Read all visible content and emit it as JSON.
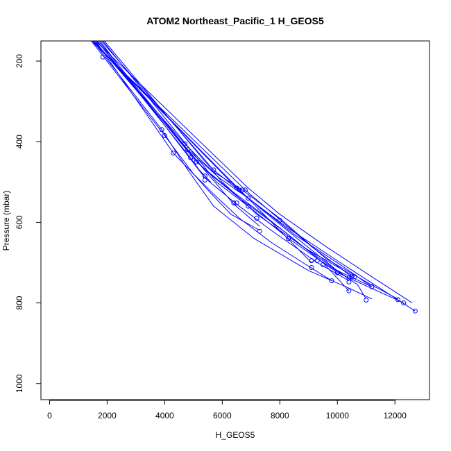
{
  "chart_data": {
    "type": "line",
    "title": "ATOM2 Northeast_Pacific_1 H_GEOS5",
    "xlabel": "H_GEOS5",
    "ylabel": "Pressure (mbar)",
    "xlim": [
      -300,
      13200
    ],
    "ylim": [
      1040,
      150
    ],
    "y_reversed": true,
    "x_ticks": [
      0,
      2000,
      4000,
      6000,
      8000,
      10000,
      12000
    ],
    "y_ticks": [
      200,
      400,
      600,
      800,
      1000
    ],
    "grid": false,
    "legend": "none",
    "color": "#0000ff",
    "series": [
      {
        "x": [
          1500,
          3900,
          4800,
          5700,
          7100,
          9000,
          10300,
          11200
        ],
        "y": [
          150,
          370,
          470,
          560,
          640,
          720,
          760,
          790
        ],
        "marker_y": [
          null,
          370,
          null,
          null,
          null,
          null,
          null,
          null
        ]
      },
      {
        "x": [
          1450,
          4000,
          5000,
          5500,
          6300,
          7300
        ],
        "y": [
          150,
          385,
          480,
          520,
          580,
          620
        ],
        "marker_y": [
          null,
          385,
          null,
          null,
          null,
          622
        ]
      },
      {
        "x": [
          1550,
          4700,
          5600,
          6700,
          8000,
          9600,
          11300,
          12100
        ],
        "y": [
          150,
          405,
          470,
          520,
          590,
          690,
          760,
          790
        ],
        "marker_y": [
          null,
          405,
          null,
          520,
          595,
          null,
          null,
          792
        ]
      },
      {
        "x": [
          1600,
          4300,
          5000,
          5700,
          6600,
          7700,
          8800,
          9800
        ],
        "y": [
          150,
          428,
          480,
          530,
          590,
          650,
          700,
          745
        ],
        "marker_y": [
          null,
          428,
          null,
          null,
          null,
          null,
          null,
          745
        ]
      },
      {
        "x": [
          1700,
          4800,
          5900,
          7000,
          8500,
          10100,
          11200
        ],
        "y": [
          150,
          420,
          490,
          545,
          630,
          705,
          760
        ],
        "marker_y": [
          null,
          420,
          null,
          null,
          null,
          null,
          760
        ]
      },
      {
        "x": [
          1800,
          5700,
          6900,
          8300,
          10100,
          12700
        ],
        "y": [
          150,
          470,
          540,
          615,
          700,
          820
        ],
        "marker_y": [
          null,
          470,
          540,
          null,
          null,
          820
        ]
      },
      {
        "x": [
          1650,
          5100,
          6200,
          7400,
          8900,
          10600
        ],
        "y": [
          150,
          450,
          515,
          580,
          665,
          735
        ],
        "marker_y": [
          null,
          450,
          null,
          null,
          null,
          735
        ]
      },
      {
        "x": [
          1750,
          5400,
          6500,
          7700,
          9300,
          10400
        ],
        "y": [
          150,
          490,
          555,
          620,
          700,
          745
        ],
        "marker_y": [
          null,
          495,
          552,
          null,
          null,
          748
        ]
      },
      {
        "x": [
          1850,
          5800,
          6900,
          8300,
          10000,
          12300
        ],
        "y": [
          150,
          500,
          560,
          640,
          725,
          800
        ],
        "marker_y": [
          null,
          null,
          560,
          640,
          725,
          800
        ]
      },
      {
        "x": [
          1900,
          6000,
          7200,
          8800,
          10700,
          11000
        ],
        "y": [
          150,
          500,
          580,
          660,
          755,
          790
        ],
        "marker_y": [
          null,
          null,
          590,
          null,
          null,
          793
        ]
      },
      {
        "x": [
          1550,
          5400,
          6600,
          8100,
          9500,
          10400
        ],
        "y": [
          150,
          470,
          540,
          620,
          700,
          770
        ],
        "marker_y": [
          null,
          485,
          520,
          null,
          705,
          770
        ]
      },
      {
        "x": [
          1450,
          6800,
          7700,
          9100,
          10500
        ],
        "y": [
          150,
          520,
          575,
          660,
          735
        ],
        "marker_y": [
          null,
          520,
          null,
          695,
          735
        ]
      },
      {
        "x": [
          1500,
          6500,
          7400,
          8600,
          10000,
          11200
        ],
        "y": [
          150,
          515,
          570,
          640,
          720,
          760
        ],
        "marker_y": [
          null,
          515,
          null,
          null,
          725,
          760
        ]
      },
      {
        "x": [
          1600,
          6900,
          8000,
          9600,
          11300,
          12600
        ],
        "y": [
          150,
          515,
          580,
          660,
          740,
          800
        ],
        "marker_y": [
          null,
          null,
          null,
          null,
          null,
          null
        ]
      },
      {
        "x": [
          1650,
          4900,
          5200,
          5600
        ],
        "y": [
          150,
          440,
          470,
          500
        ],
        "marker_y": [
          null,
          440,
          null,
          null
        ]
      },
      {
        "x": [
          1550,
          6400,
          7300
        ],
        "y": [
          150,
          555,
          610
        ],
        "marker_y": [
          null,
          552,
          null
        ]
      },
      {
        "x": [
          1500,
          9100,
          9300,
          10400
        ],
        "y": [
          150,
          700,
          690,
          740
        ],
        "marker_y": [
          null,
          712,
          695,
          738
        ]
      },
      {
        "x": [
          1850
        ],
        "y": [
          190
        ],
        "marker_y": [
          190
        ]
      }
    ]
  }
}
